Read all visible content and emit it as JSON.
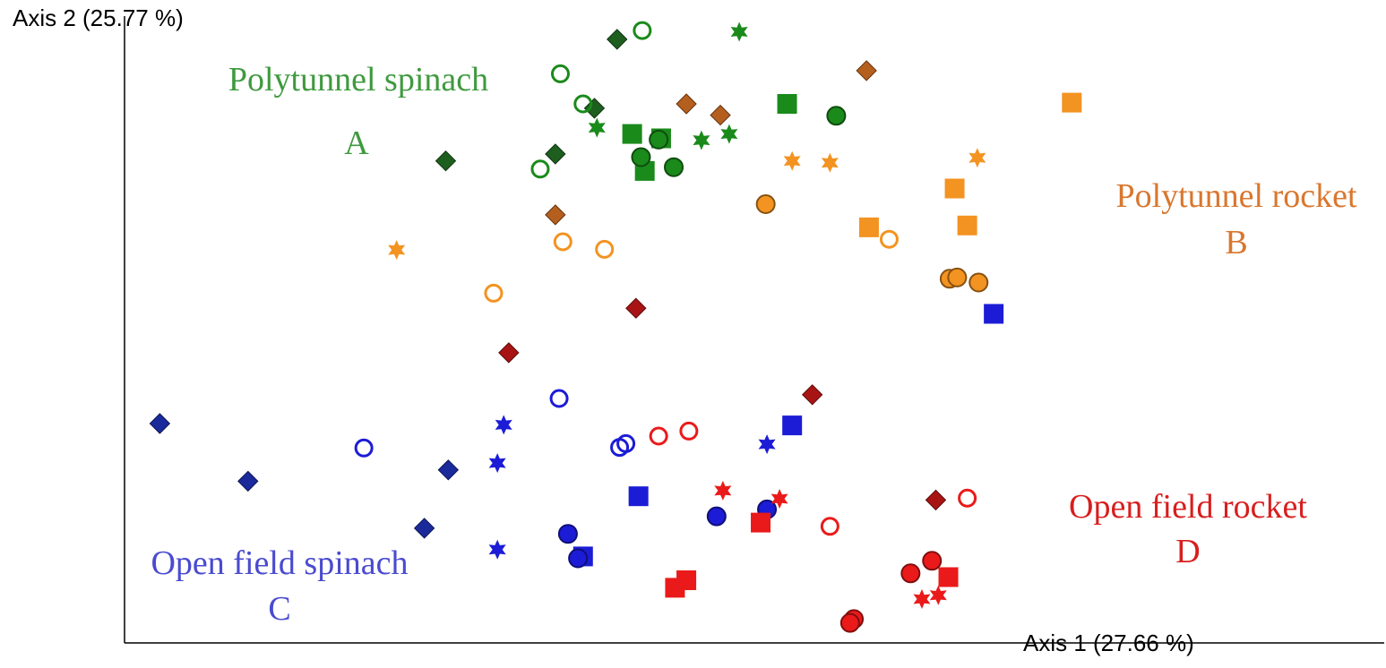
{
  "chart_data": {
    "type": "scatter",
    "title": "",
    "xlabel": "Axis 1 (27.66 %)",
    "ylabel": "Axis 2 (25.77 %)",
    "xlim": [
      0,
      100
    ],
    "ylim": [
      0,
      100
    ],
    "grid": false,
    "colors": {
      "green": "#1a8a1a",
      "darkgreen": "#1e5e1e",
      "orange": "#f39321",
      "brown": "#b55f1f",
      "blue": "#1c1cd6",
      "darkblue": "#1a2a9a",
      "red": "#ea1a1a",
      "darkred": "#a81414"
    },
    "group_labels": [
      {
        "name": "Polytunnel spinach",
        "letter": "A",
        "color": "#3f9a3f"
      },
      {
        "name": "Polytunnel rocket",
        "letter": "B",
        "color": "#d9772e"
      },
      {
        "name": "Open field spinach",
        "letter": "C",
        "color": "#4a4ad0"
      },
      {
        "name": "Open field rocket",
        "letter": "D",
        "color": "#d81e1e"
      }
    ],
    "series": [
      {
        "color": "green",
        "marker": "diamond-dk",
        "points": [
          [
            39.1,
            96.3
          ],
          [
            37.3,
            85.3
          ],
          [
            34.2,
            78.0
          ],
          [
            25.5,
            76.9
          ]
        ]
      },
      {
        "color": "green",
        "marker": "ring",
        "points": [
          [
            41.1,
            97.7
          ],
          [
            34.6,
            90.8
          ],
          [
            36.4,
            86.0
          ],
          [
            33.0,
            75.6
          ]
        ]
      },
      {
        "color": "green",
        "marker": "star",
        "points": [
          [
            48.8,
            97.5
          ],
          [
            37.5,
            82.2
          ],
          [
            48.0,
            81.2
          ],
          [
            45.8,
            80.2
          ]
        ]
      },
      {
        "color": "green",
        "marker": "square",
        "points": [
          [
            52.6,
            86.0
          ],
          [
            40.3,
            81.2
          ],
          [
            42.6,
            80.5
          ],
          [
            41.3,
            75.3
          ]
        ]
      },
      {
        "color": "green",
        "marker": "circle",
        "points": [
          [
            56.5,
            84.1
          ],
          [
            42.4,
            80.3
          ],
          [
            41.0,
            77.5
          ],
          [
            43.6,
            75.9
          ]
        ]
      },
      {
        "color": "brown",
        "marker": "diamond",
        "points": [
          [
            58.9,
            91.3
          ],
          [
            44.6,
            86.0
          ],
          [
            47.3,
            84.2
          ],
          [
            34.2,
            68.3
          ]
        ]
      },
      {
        "color": "orange",
        "marker": "square",
        "points": [
          [
            75.2,
            86.2
          ],
          [
            65.9,
            72.5
          ],
          [
            66.9,
            66.6
          ],
          [
            59.1,
            66.3
          ]
        ]
      },
      {
        "color": "orange",
        "marker": "star",
        "points": [
          [
            67.7,
            77.4
          ],
          [
            53.0,
            76.9
          ],
          [
            56.0,
            76.6
          ],
          [
            21.6,
            62.7
          ]
        ]
      },
      {
        "color": "orange",
        "marker": "ring",
        "points": [
          [
            38.1,
            62.8
          ],
          [
            34.8,
            64.0
          ],
          [
            60.7,
            64.4
          ],
          [
            29.3,
            55.8
          ]
        ]
      },
      {
        "color": "orange",
        "marker": "circle",
        "points": [
          [
            50.9,
            70.0
          ],
          [
            65.5,
            58.1
          ],
          [
            66.1,
            58.3
          ],
          [
            67.8,
            57.5
          ]
        ]
      },
      {
        "color": "blue",
        "marker": "square",
        "points": [
          [
            69.0,
            52.5
          ],
          [
            53.0,
            34.7
          ],
          [
            40.8,
            23.4
          ],
          [
            36.4,
            13.8
          ]
        ]
      },
      {
        "color": "darkred",
        "marker": "diamond",
        "points": [
          [
            40.6,
            53.4
          ],
          [
            30.5,
            46.3
          ],
          [
            54.6,
            39.6
          ],
          [
            64.4,
            22.8
          ]
        ]
      },
      {
        "color": "darkblue",
        "marker": "diamond",
        "points": [
          [
            2.8,
            35.0
          ],
          [
            9.8,
            25.8
          ],
          [
            25.7,
            27.6
          ],
          [
            23.8,
            18.3
          ]
        ]
      },
      {
        "color": "blue",
        "marker": "ring",
        "points": [
          [
            34.5,
            39.0
          ],
          [
            19.0,
            31.1
          ],
          [
            39.8,
            31.8
          ],
          [
            39.3,
            31.2
          ]
        ]
      },
      {
        "color": "blue",
        "marker": "star",
        "points": [
          [
            30.1,
            34.8
          ],
          [
            29.6,
            28.7
          ],
          [
            51.0,
            31.7
          ],
          [
            29.6,
            14.9
          ]
        ]
      },
      {
        "color": "blue",
        "marker": "circle",
        "points": [
          [
            35.2,
            17.4
          ],
          [
            36.0,
            13.5
          ],
          [
            47.0,
            20.2
          ],
          [
            51.0,
            21.3
          ]
        ]
      },
      {
        "color": "red",
        "marker": "ring",
        "points": [
          [
            44.8,
            33.8
          ],
          [
            42.4,
            33.0
          ],
          [
            66.9,
            23.1
          ],
          [
            56.0,
            18.6
          ]
        ]
      },
      {
        "color": "red",
        "marker": "star",
        "points": [
          [
            47.5,
            24.3
          ],
          [
            52.0,
            23.0
          ],
          [
            64.6,
            7.6
          ],
          [
            63.3,
            7.0
          ]
        ]
      },
      {
        "color": "red",
        "marker": "square",
        "points": [
          [
            50.5,
            19.2
          ],
          [
            44.6,
            10.0
          ],
          [
            43.7,
            8.8
          ],
          [
            65.4,
            10.5
          ]
        ]
      },
      {
        "color": "red",
        "marker": "circle",
        "points": [
          [
            64.1,
            13.1
          ],
          [
            62.4,
            11.1
          ],
          [
            57.9,
            3.8
          ],
          [
            57.6,
            3.2
          ]
        ]
      }
    ]
  }
}
